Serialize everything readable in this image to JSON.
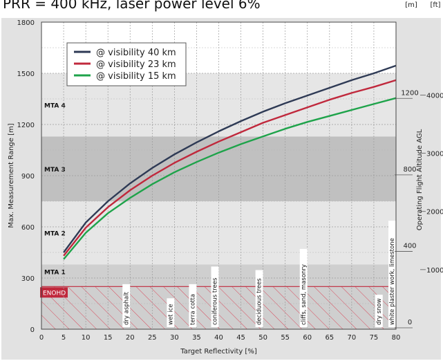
{
  "chart_data": {
    "type": "line",
    "title": "PRR = 400 kHz, laser power level 6%",
    "xlabel": "Target Reflectivity [%]",
    "ylabel": "Max. Measurement Range [m]",
    "y2label": "Operating Flight Altitude AGL",
    "xlim": [
      0,
      80
    ],
    "ylim": [
      0,
      1800
    ],
    "x_ticks": [
      "0",
      "5",
      "10",
      "15",
      "20",
      "25",
      "30",
      "35",
      "40",
      "45",
      "50",
      "55",
      "60",
      "65",
      "70",
      "75",
      "80"
    ],
    "y_ticks": [
      "0",
      "300",
      "600",
      "900",
      "1200",
      "1500",
      "1800"
    ],
    "grid": true,
    "legend_position": "top-left",
    "x": [
      5,
      10,
      15,
      20,
      25,
      30,
      35,
      40,
      45,
      50,
      55,
      60,
      65,
      70,
      75,
      80
    ],
    "series": [
      {
        "name": "@ visibility 40 km",
        "color": "#2e3a55",
        "values": [
          450,
          625,
          750,
          855,
          945,
          1025,
          1095,
          1160,
          1220,
          1275,
          1325,
          1370,
          1415,
          1460,
          1500,
          1545
        ]
      },
      {
        "name": "@ visibility 23 km",
        "color": "#c0283c",
        "values": [
          430,
          595,
          715,
          815,
          900,
          975,
          1040,
          1100,
          1155,
          1210,
          1255,
          1300,
          1345,
          1385,
          1420,
          1460
        ]
      },
      {
        "name": "@ visibility 15 km",
        "color": "#1ea34a",
        "values": [
          410,
          565,
          680,
          770,
          850,
          920,
          980,
          1035,
          1085,
          1130,
          1175,
          1215,
          1250,
          1285,
          1320,
          1355
        ]
      }
    ],
    "secondary_axes": {
      "meters": {
        "unit": "[m]",
        "ticks": [
          {
            "label": "0",
            "value": 0
          },
          {
            "label": "400",
            "value": 400
          },
          {
            "label": "800",
            "value": 800
          },
          {
            "label": "1200",
            "value": 1200
          }
        ],
        "max_value": 1400
      },
      "feet": {
        "unit": "[ft]",
        "ticks": [
          {
            "label": "1000",
            "value": 1000
          },
          {
            "label": "2000",
            "value": 2000
          },
          {
            "label": "3000",
            "value": 3000
          },
          {
            "label": "4000",
            "value": 4000
          }
        ],
        "max_value": 4600
      }
    },
    "bands": [
      {
        "label": "MTA 1",
        "from": 0,
        "to": 380,
        "shade": "#cfcfcf"
      },
      {
        "label": "MTA 2",
        "from": 380,
        "to": 750,
        "shade": "#e6e6e6"
      },
      {
        "label": "MTA 3",
        "from": 750,
        "to": 1130,
        "shade": "#c0c0c0"
      },
      {
        "label": "MTA 4",
        "from": 1130,
        "to": 1500,
        "shade": "#e6e6e6"
      }
    ],
    "enohd": {
      "label": "ENOHD",
      "from_x": 0,
      "to_x": 80,
      "to_y": 250,
      "color": "#c0283c"
    },
    "surfaces": [
      {
        "label": "dry asphalt",
        "x": 20
      },
      {
        "label": "wet ice",
        "x": 30
      },
      {
        "label": "terra cotta",
        "x": 35
      },
      {
        "label": "coniferous trees",
        "x": 40
      },
      {
        "label": "deciduous trees",
        "x": 50
      },
      {
        "label": "cliffs, sand, masonry",
        "x": 60
      },
      {
        "label": "dry snow",
        "x": 77
      },
      {
        "label": "white plaster work, limestone",
        "x": 80
      }
    ]
  }
}
